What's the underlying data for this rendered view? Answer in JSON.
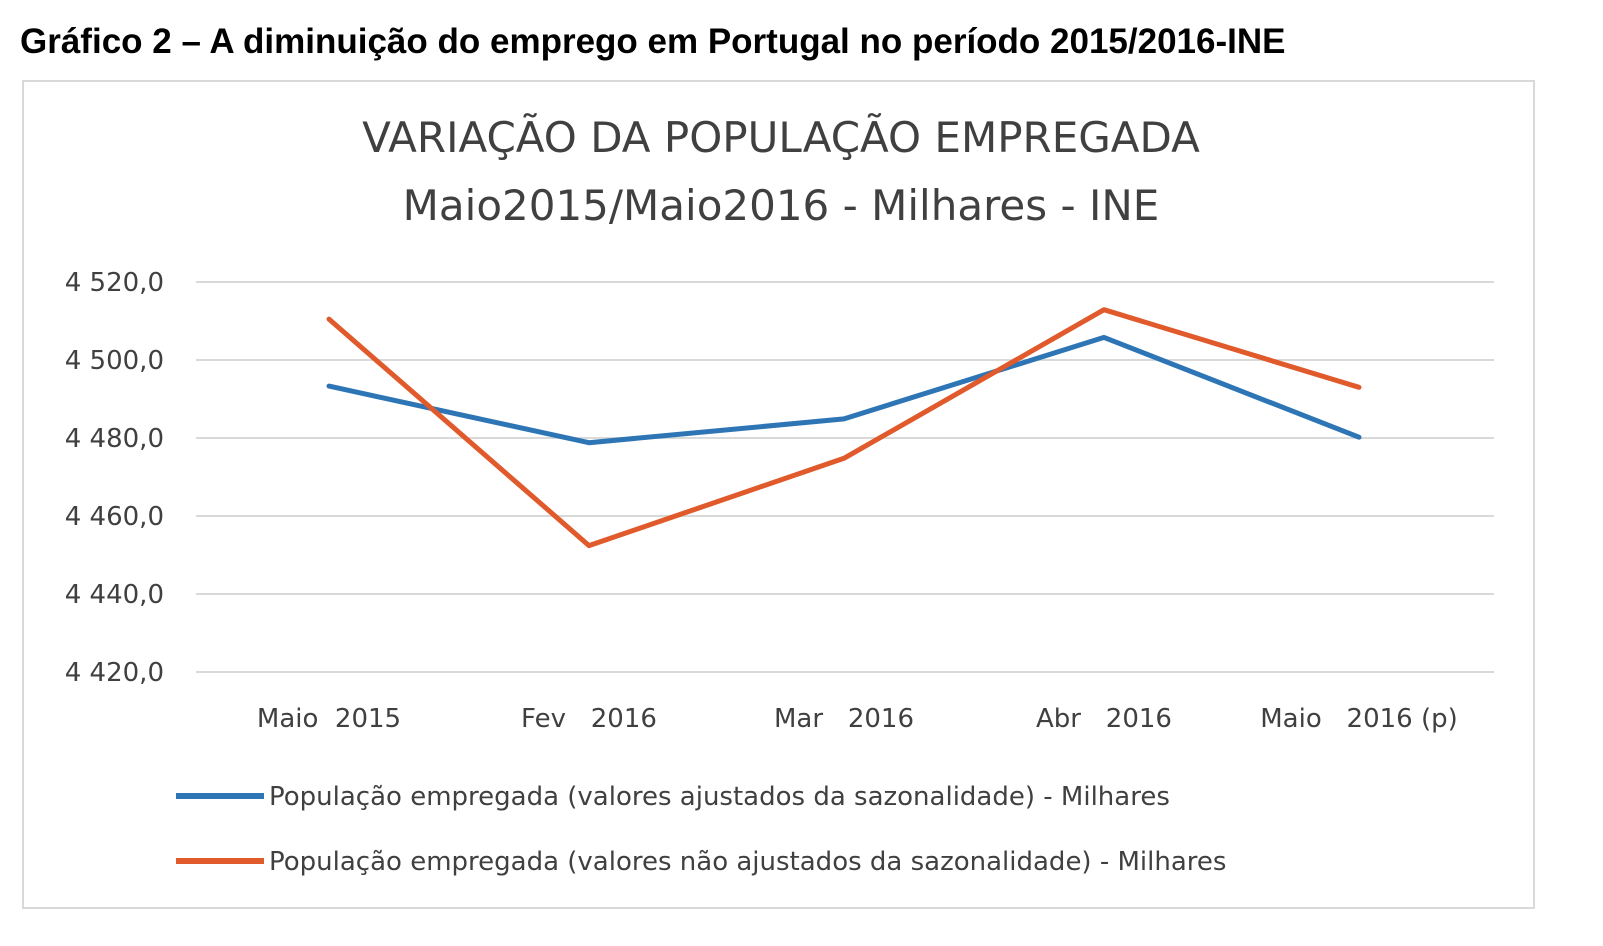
{
  "caption": "Gráfico 2 – A diminuição do emprego em Portugal no período 2015/2016-INE",
  "chart_data": {
    "type": "line",
    "title_lines": [
      "VARIAÇÃO DA POPULAÇÃO EMPREGADA",
      "Maio2015/Maio2016 - Milhares - INE"
    ],
    "categories": [
      "Maio  2015",
      "Fev   2016",
      "Mar   2016",
      "Abr   2016",
      "Maio   2016 (p)"
    ],
    "ylim": [
      4420,
      4520
    ],
    "yticks": [
      4420,
      4440,
      4460,
      4480,
      4500,
      4520
    ],
    "ytick_labels": [
      "4 420,0",
      "4 440,0",
      "4 460,0",
      "4 480,0",
      "4 500,0",
      "4 520,0"
    ],
    "grid": true,
    "legend_position": "bottom",
    "series": [
      {
        "name": "População empregada (valores ajustados da sazonalidade) - Milhares",
        "color": "#2e75b6",
        "values": [
          4493.3,
          4478.8,
          4484.9,
          4505.8,
          4480.2
        ]
      },
      {
        "name": "População empregada (valores não ajustados da sazonalidade) - Milhares",
        "color": "#e05a2b",
        "values": [
          4510.5,
          4452.4,
          4474.8,
          4512.9,
          4493.0
        ]
      }
    ]
  }
}
